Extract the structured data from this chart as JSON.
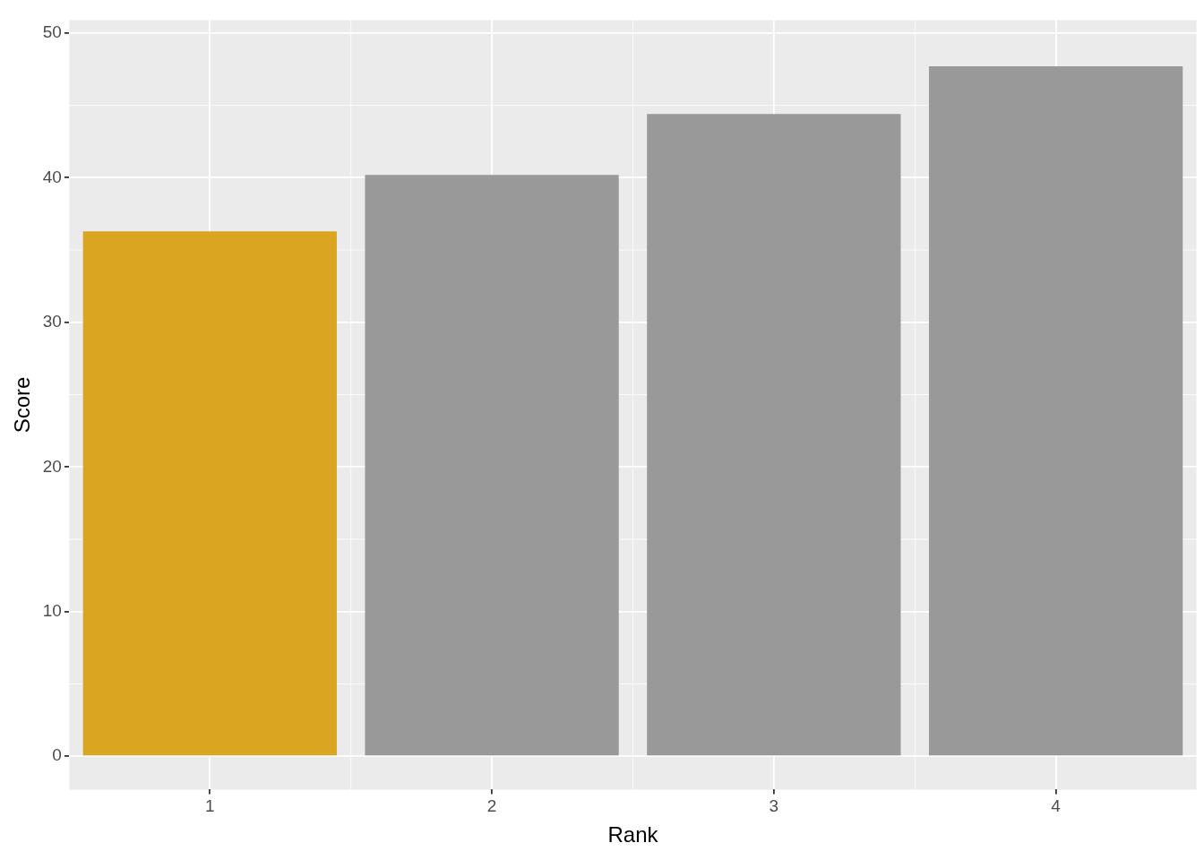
{
  "chart_data": {
    "type": "bar",
    "xlabel": "Rank",
    "ylabel": "Score",
    "categories": [
      "1",
      "2",
      "3",
      "4"
    ],
    "values": [
      36.3,
      40.2,
      44.4,
      47.7
    ],
    "colors": [
      "#daa520",
      "#999999",
      "#999999",
      "#999999"
    ],
    "ylim": [
      -2.3,
      50.9
    ],
    "yticks": [
      0,
      10,
      20,
      30,
      40,
      50
    ],
    "grid": true
  }
}
